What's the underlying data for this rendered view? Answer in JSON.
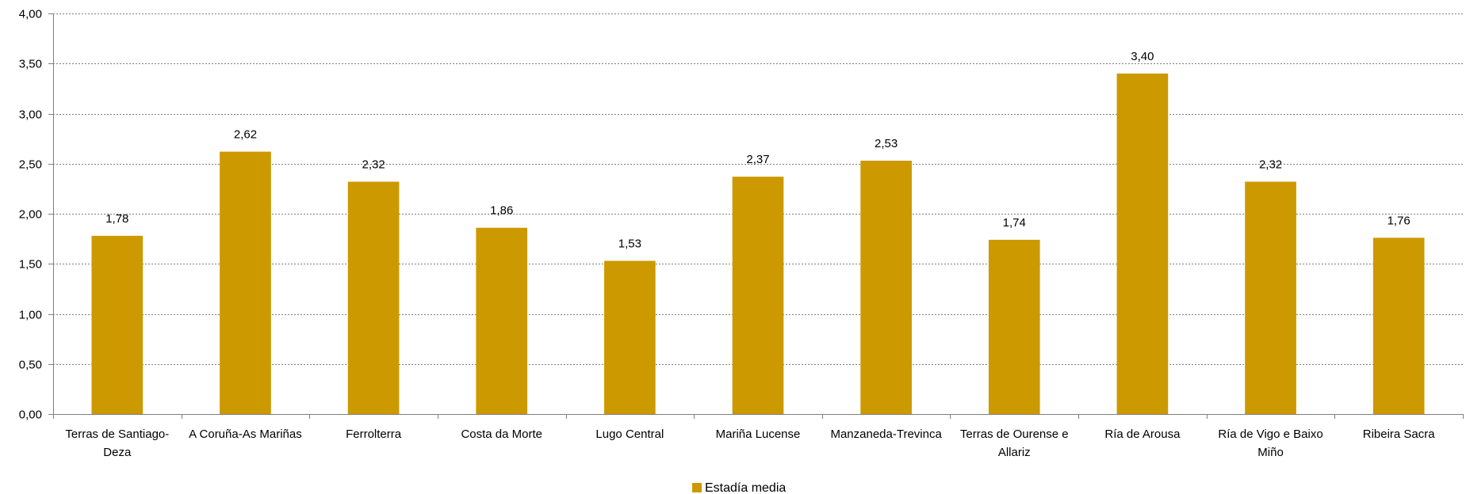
{
  "chart_data": {
    "type": "bar",
    "categories": [
      "Terras de Santiago-Deza",
      "A Coruña-As Mariñas",
      "Ferrolterra",
      "Costa da Morte",
      "Lugo Central",
      "Mariña Lucense",
      "Manzaneda-Trevinca",
      "Terras de Ourense e Allariz",
      "Ría de Arousa",
      "Ría de Vigo e Baixo Miño",
      "Ribeira Sacra"
    ],
    "category_lines": [
      [
        "Terras de Santiago-",
        "Deza"
      ],
      [
        "A Coruña-As Mariñas"
      ],
      [
        "Ferrolterra"
      ],
      [
        "Costa da Morte"
      ],
      [
        "Lugo Central"
      ],
      [
        "Mariña Lucense"
      ],
      [
        "Manzaneda-Trevinca"
      ],
      [
        "Terras de Ourense e",
        "Allariz"
      ],
      [
        "Ría de Arousa"
      ],
      [
        "Ría de Vigo e Baixo",
        "Miño"
      ],
      [
        "Ribeira Sacra"
      ]
    ],
    "series": [
      {
        "name": "Estadía media",
        "values": [
          1.78,
          2.62,
          2.32,
          1.86,
          1.53,
          2.37,
          2.53,
          1.74,
          3.4,
          2.32,
          1.76
        ],
        "labels": [
          "1,78",
          "2,62",
          "2,32",
          "1,86",
          "1,53",
          "2,37",
          "2,53",
          "1,74",
          "3,40",
          "2,32",
          "1,76"
        ],
        "color": "#CC9900"
      }
    ],
    "ylim": [
      0,
      4
    ],
    "yticks": [
      0,
      0.5,
      1,
      1.5,
      2,
      2.5,
      3,
      3.5,
      4
    ],
    "ytick_labels": [
      "0,00",
      "0,50",
      "1,00",
      "1,50",
      "2,00",
      "2,50",
      "3,00",
      "3,50",
      "4,00"
    ],
    "title": "",
    "xlabel": "",
    "ylabel": "",
    "grid": true,
    "legend": "bottom-center"
  }
}
